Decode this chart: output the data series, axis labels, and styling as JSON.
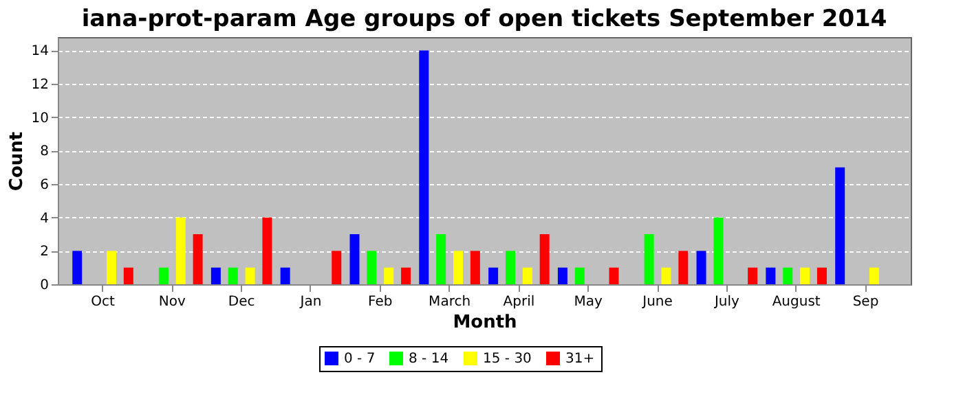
{
  "chart_data": {
    "type": "bar",
    "title": "iana-prot-param Age groups of open tickets September 2014",
    "xlabel": "Month",
    "ylabel": "Count",
    "categories": [
      "Oct",
      "Nov",
      "Dec",
      "Jan",
      "Feb",
      "March",
      "April",
      "May",
      "June",
      "July",
      "August",
      "Sep"
    ],
    "series": [
      {
        "name": "0 - 7",
        "color": "#0000ff",
        "values": [
          2,
          0,
          1,
          1,
          3,
          14,
          1,
          1,
          0,
          2,
          1,
          7
        ]
      },
      {
        "name": "8 - 14",
        "color": "#00ff00",
        "values": [
          0,
          1,
          1,
          0,
          2,
          3,
          2,
          1,
          3,
          4,
          1,
          0
        ]
      },
      {
        "name": "15 - 30",
        "color": "#ffff00",
        "values": [
          2,
          4,
          1,
          0,
          1,
          2,
          1,
          0,
          1,
          0,
          1,
          1
        ]
      },
      {
        "name": "31+",
        "color": "#ff0000",
        "values": [
          1,
          3,
          4,
          2,
          1,
          2,
          3,
          1,
          2,
          1,
          1,
          0
        ]
      }
    ],
    "ylim": [
      0,
      14.8
    ],
    "yticks": [
      0,
      2,
      4,
      6,
      8,
      10,
      12,
      14
    ],
    "grid": "y",
    "legend": "bottom"
  }
}
